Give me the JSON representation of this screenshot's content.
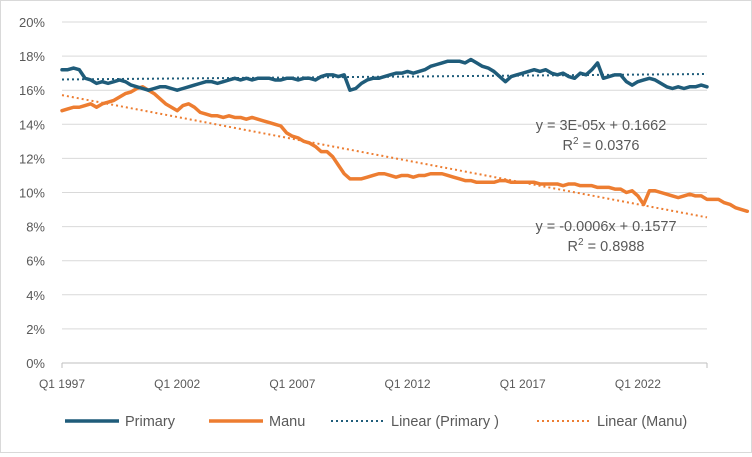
{
  "chart_data": {
    "type": "line",
    "title": "",
    "xlabel": "",
    "ylabel": "",
    "x_start": 1997.0,
    "x_step": 0.25,
    "ylim": [
      0,
      0.2
    ],
    "yticks": [
      0,
      0.02,
      0.04,
      0.06,
      0.08,
      0.1,
      0.12,
      0.14,
      0.16,
      0.18,
      0.2
    ],
    "ytick_labels": [
      "0%",
      "2%",
      "4%",
      "6%",
      "8%",
      "10%",
      "12%",
      "14%",
      "16%",
      "18%",
      "20%"
    ],
    "xticks": [
      1997,
      2002,
      2007,
      2012,
      2017,
      2022
    ],
    "xtick_labels": [
      "Q1 1997",
      "Q1 2002",
      "Q1 2007",
      "Q1 2012",
      "Q1 2017",
      "Q1 2022"
    ],
    "grid": "horizontal",
    "legend_position": "bottom",
    "series": [
      {
        "name": "Primary",
        "style": "solid",
        "color": "#1f5c7a",
        "values": [
          0.172,
          0.172,
          0.173,
          0.172,
          0.167,
          0.166,
          0.164,
          0.165,
          0.164,
          0.165,
          0.166,
          0.165,
          0.163,
          0.162,
          0.161,
          0.16,
          0.161,
          0.162,
          0.162,
          0.161,
          0.16,
          0.161,
          0.162,
          0.163,
          0.164,
          0.165,
          0.165,
          0.164,
          0.165,
          0.166,
          0.167,
          0.166,
          0.167,
          0.166,
          0.167,
          0.167,
          0.167,
          0.166,
          0.166,
          0.167,
          0.167,
          0.166,
          0.167,
          0.167,
          0.166,
          0.168,
          0.169,
          0.169,
          0.168,
          0.169,
          0.16,
          0.161,
          0.164,
          0.166,
          0.167,
          0.167,
          0.168,
          0.169,
          0.17,
          0.17,
          0.171,
          0.17,
          0.171,
          0.172,
          0.174,
          0.175,
          0.176,
          0.177,
          0.177,
          0.177,
          0.176,
          0.178,
          0.176,
          0.174,
          0.173,
          0.171,
          0.168,
          0.165,
          0.168,
          0.169,
          0.17,
          0.171,
          0.172,
          0.171,
          0.172,
          0.17,
          0.169,
          0.17,
          0.168,
          0.167,
          0.17,
          0.169,
          0.172,
          0.176,
          0.167,
          0.168,
          0.169,
          0.169,
          0.165,
          0.163,
          0.165,
          0.166,
          0.167,
          0.166,
          0.164,
          0.162,
          0.161,
          0.162,
          0.161,
          0.162,
          0.162,
          0.163,
          0.162
        ]
      },
      {
        "name": "Manu",
        "style": "solid",
        "color": "#ed7d31",
        "values": [
          0.148,
          0.149,
          0.15,
          0.15,
          0.151,
          0.152,
          0.15,
          0.152,
          0.153,
          0.154,
          0.156,
          0.158,
          0.159,
          0.161,
          0.162,
          0.16,
          0.158,
          0.155,
          0.152,
          0.15,
          0.148,
          0.151,
          0.152,
          0.15,
          0.147,
          0.146,
          0.145,
          0.145,
          0.144,
          0.145,
          0.144,
          0.144,
          0.143,
          0.144,
          0.143,
          0.142,
          0.141,
          0.14,
          0.139,
          0.135,
          0.133,
          0.132,
          0.13,
          0.129,
          0.127,
          0.124,
          0.124,
          0.121,
          0.116,
          0.111,
          0.108,
          0.108,
          0.108,
          0.109,
          0.11,
          0.111,
          0.111,
          0.11,
          0.109,
          0.11,
          0.11,
          0.109,
          0.11,
          0.11,
          0.111,
          0.111,
          0.111,
          0.11,
          0.109,
          0.108,
          0.107,
          0.107,
          0.106,
          0.106,
          0.106,
          0.106,
          0.107,
          0.107,
          0.106,
          0.106,
          0.106,
          0.106,
          0.106,
          0.105,
          0.105,
          0.105,
          0.105,
          0.104,
          0.105,
          0.105,
          0.104,
          0.104,
          0.104,
          0.103,
          0.103,
          0.103,
          0.102,
          0.102,
          0.1,
          0.101,
          0.098,
          0.093,
          0.101,
          0.101,
          0.1,
          0.099,
          0.098,
          0.097,
          0.098,
          0.099,
          0.098,
          0.098,
          0.096,
          0.096,
          0.096,
          0.094,
          0.093,
          0.091,
          0.09,
          0.089
        ]
      },
      {
        "name": "Linear (Primary )",
        "style": "dotted",
        "color": "#1f5c7a",
        "values_at_ends": [
          0.1663,
          0.1695
        ]
      },
      {
        "name": "Linear (Manu)",
        "style": "dotted",
        "color": "#ed7d31",
        "values_at_ends": [
          0.1571,
          0.0854
        ]
      }
    ],
    "annotations": [
      {
        "for": "Primary",
        "equation": "y = 3E-05x + 0.1662",
        "r2_label": "R",
        "r2_sup": "2",
        "r2_value": " = 0.0376"
      },
      {
        "for": "Manu",
        "equation": "y = -0.0006x + 0.1577",
        "r2_label": "R",
        "r2_sup": "2",
        "r2_value": " = 0.8988"
      }
    ]
  }
}
